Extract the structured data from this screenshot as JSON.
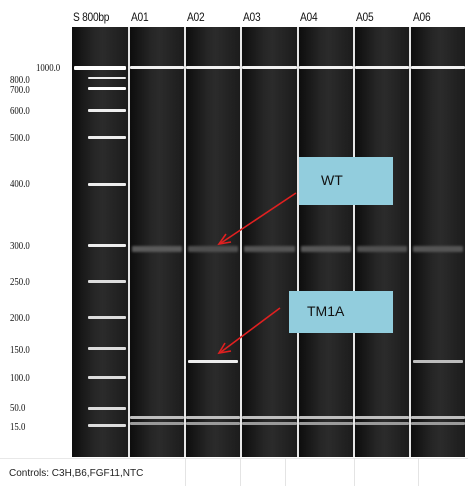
{
  "lanes": {
    "ladder_label": "S 800bp",
    "sample_labels": [
      "A01",
      "A02",
      "A03",
      "A04",
      "A05",
      "A06"
    ]
  },
  "ladder_sizes": [
    "1000.0",
    "800.0",
    "700.0",
    "600.0",
    "500.0",
    "400.0",
    "300.0",
    "250.0",
    "200.0",
    "150.0",
    "100.0",
    "50.0",
    "15.0"
  ],
  "callouts": {
    "wt": "WT",
    "tm1a": "TM1A"
  },
  "footer": {
    "controls_text": "Controls: C3H,B6,FGF11,NTC"
  },
  "colors": {
    "gel_background": "#141414",
    "band": "#ffffff",
    "callout_fill": "#92cddd",
    "arrow": "#e02020"
  }
}
